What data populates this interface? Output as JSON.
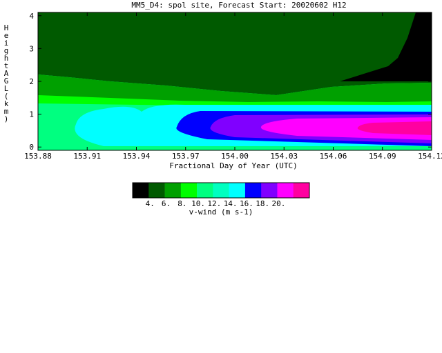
{
  "chart_data": {
    "type": "heatmap",
    "title": "MM5_D4: spol site,  Forecast Start: 20020602 H12",
    "xlabel": "Fractional Day of Year (UTC)",
    "ylabel": "Height AGL (km)",
    "xlim": [
      153.88,
      154.12
    ],
    "ylim": [
      -0.1,
      4.1
    ],
    "x_ticks": [
      "153.88",
      "153.91",
      "153.94",
      "153.97",
      "154.00",
      "154.03",
      "154.06",
      "154.09",
      "154.12"
    ],
    "y_ticks": [
      "0",
      "1",
      "2",
      "3",
      "4"
    ],
    "colorbar": {
      "label": "v-wind (m s-1)",
      "tick_labels": [
        "4.",
        "6.",
        "8.",
        "10.",
        "12.",
        "14.",
        "16.",
        "18.",
        "20."
      ],
      "levels": [
        4,
        6,
        8,
        10,
        12,
        14,
        16,
        18,
        20
      ],
      "colors": [
        "#000000",
        "#005a00",
        "#00a000",
        "#00ff00",
        "#00ff80",
        "#00ffc0",
        "#00ffff",
        "#0000ff",
        "#8000ff",
        "#ff00ff",
        "#ff00a0"
      ]
    },
    "contour_regions": [
      {
        "level": "5-6",
        "color": "#005a00",
        "x": [
          153.88,
          154.12
        ],
        "y": [
          2.5,
          4.1
        ]
      },
      {
        "level": "<5",
        "color": "#000000",
        "x": [
          154.07,
          154.12
        ],
        "y": [
          2.2,
          4.1
        ]
      },
      {
        "level": "6-8",
        "color": "#00a000",
        "x": [
          153.88,
          154.12
        ],
        "y": [
          1.5,
          2.5
        ]
      },
      {
        "level": "8-10",
        "color": "#00ff00",
        "x": [
          153.88,
          154.12
        ],
        "y": [
          1.3,
          1.7
        ]
      },
      {
        "level": "10-12",
        "color": "#00ff80",
        "x": [
          153.88,
          154.12
        ],
        "y": [
          -0.1,
          1.5
        ]
      },
      {
        "level": "12-14",
        "color": "#00ffff",
        "x": [
          153.89,
          154.12
        ],
        "y": [
          0.0,
          1.2
        ]
      },
      {
        "level": "14-16",
        "color": "#0000ff",
        "x": [
          153.97,
          154.12
        ],
        "y": [
          0.2,
          1.1
        ]
      },
      {
        "level": "16-18",
        "color": "#8000ff",
        "x": [
          153.99,
          154.12
        ],
        "y": [
          0.3,
          1.0
        ]
      },
      {
        "level": "18-20",
        "color": "#ff00ff",
        "x": [
          154.02,
          154.12
        ],
        "y": [
          0.35,
          0.85
        ]
      }
    ]
  }
}
